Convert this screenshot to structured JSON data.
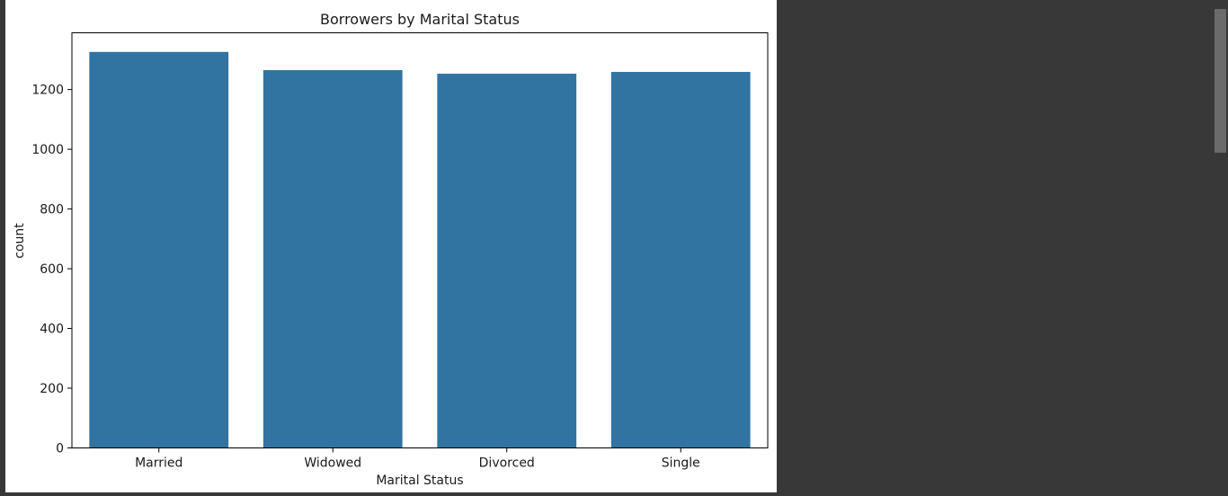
{
  "colors": {
    "bar": "#3274a1",
    "background": "#383838",
    "plot_bg": "#ffffff"
  },
  "chart_data": {
    "type": "bar",
    "title": "Borrowers by Marital Status",
    "xlabel": "Marital Status",
    "ylabel": "count",
    "categories": [
      "Married",
      "Widowed",
      "Divorced",
      "Single"
    ],
    "values": [
      1326,
      1265,
      1253,
      1259
    ],
    "ylim": [
      0,
      1390
    ],
    "yticks": [
      0,
      200,
      400,
      600,
      800,
      1000,
      1200
    ],
    "grid": false,
    "legend": "none"
  }
}
